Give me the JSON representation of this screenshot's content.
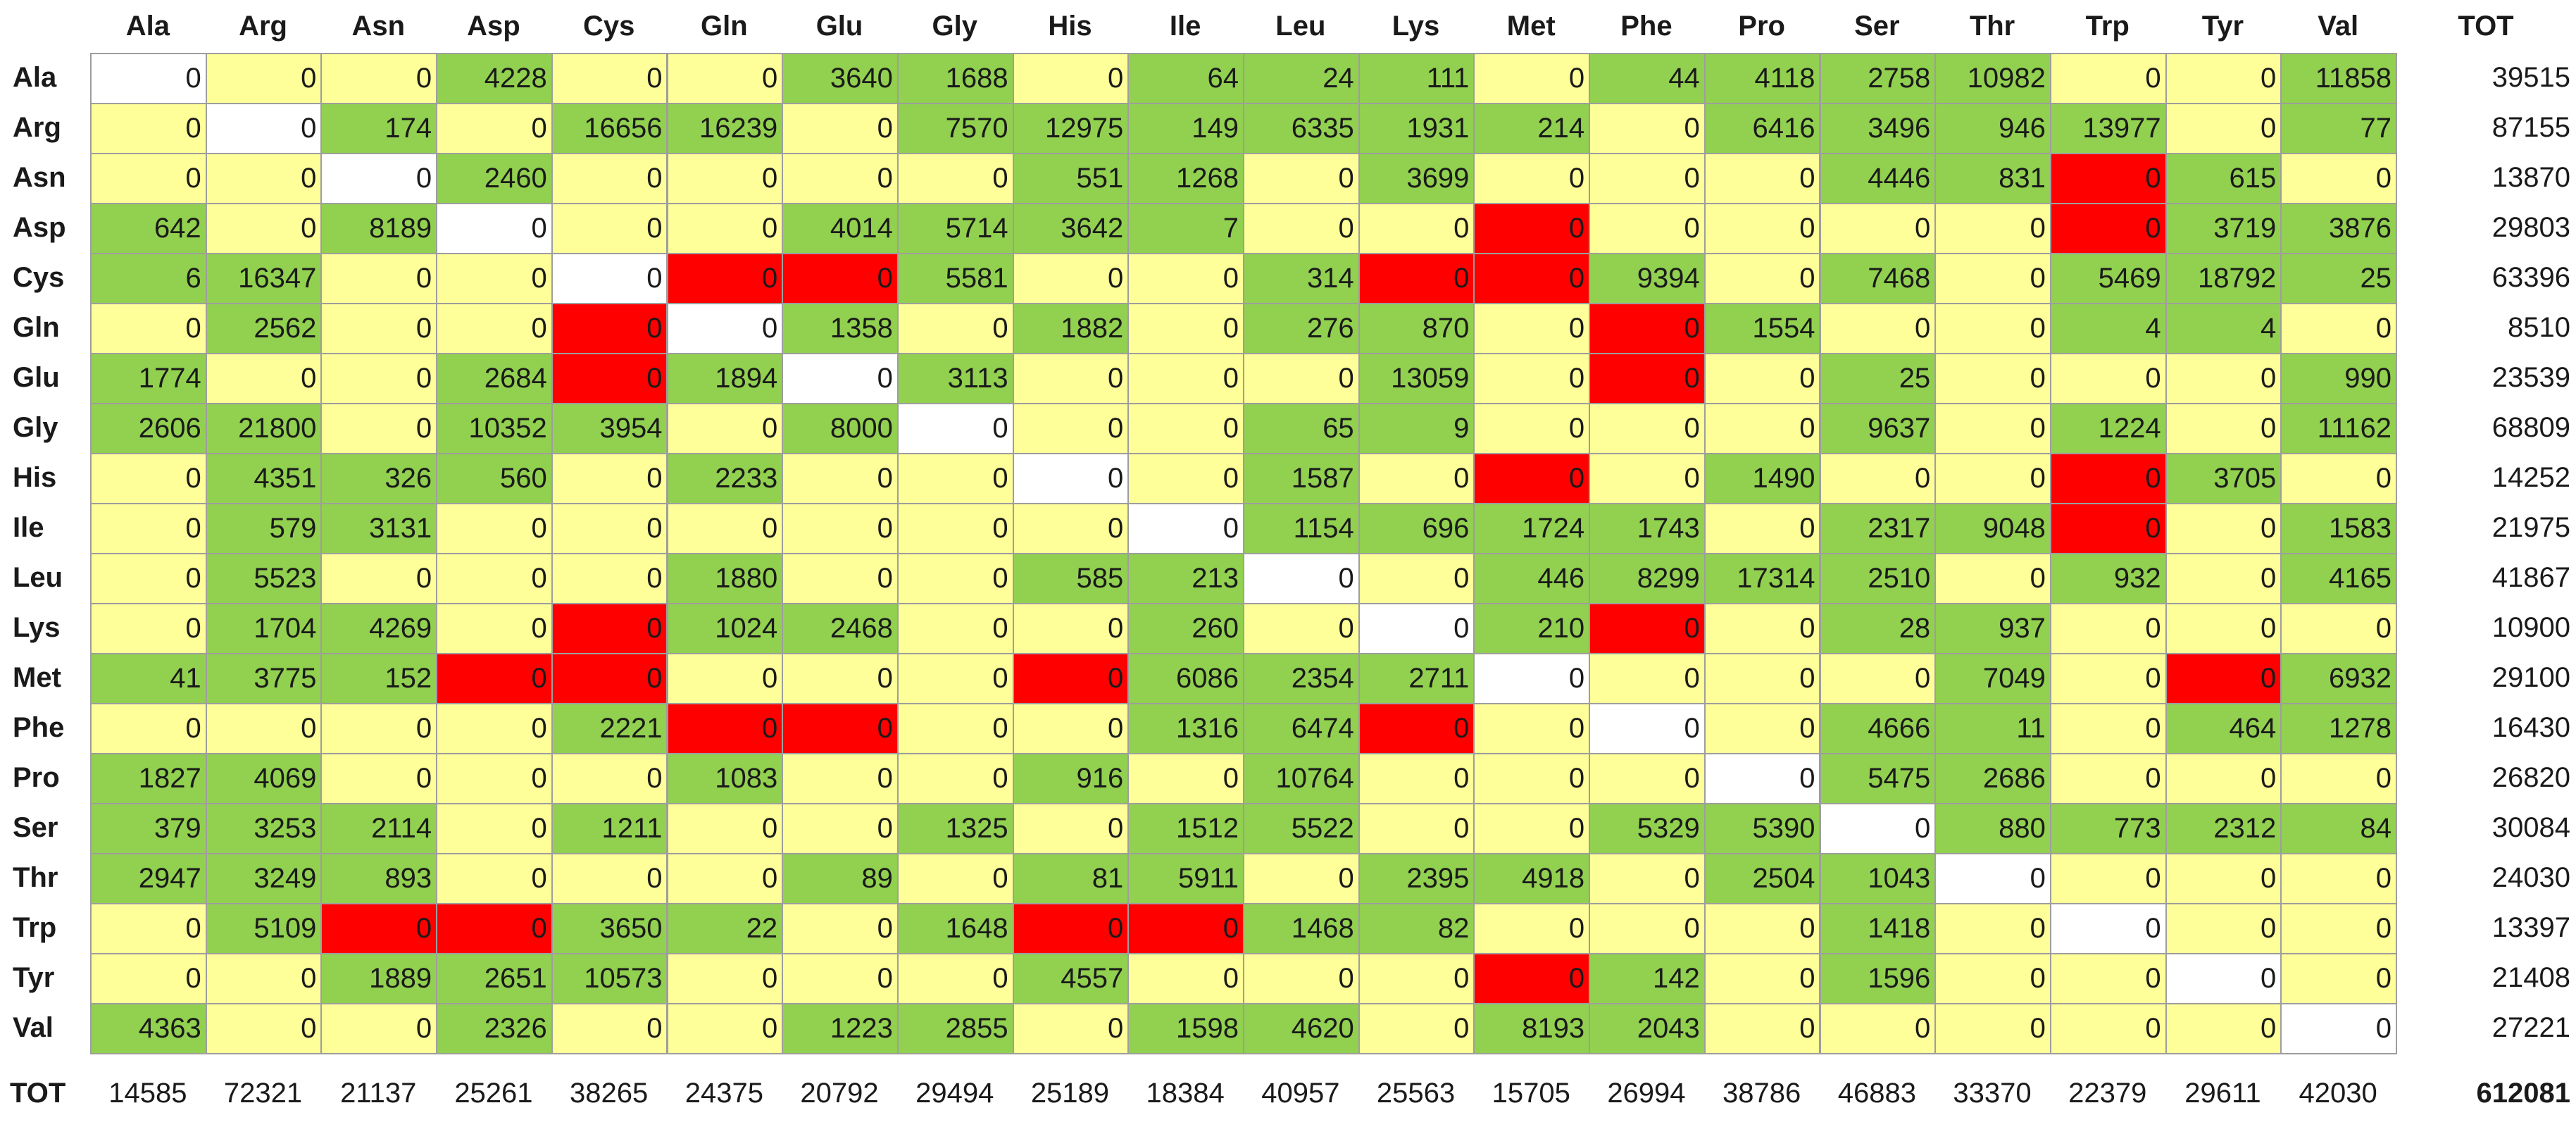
{
  "colors": {
    "zero": "#ffff99",
    "nonzero": "#92d050",
    "forbidden": "#ff0000",
    "diagonal": "#ffffff"
  },
  "chart_data": {
    "type": "table",
    "corner_label": "TOT",
    "columns": [
      "Ala",
      "Arg",
      "Asn",
      "Asp",
      "Cys",
      "Gln",
      "Glu",
      "Gly",
      "His",
      "Ile",
      "Leu",
      "Lys",
      "Met",
      "Phe",
      "Pro",
      "Ser",
      "Thr",
      "Trp",
      "Tyr",
      "Val"
    ],
    "total_label": "TOT",
    "rows": [
      {
        "label": "Ala",
        "values": [
          0,
          0,
          0,
          4228,
          0,
          0,
          3640,
          1688,
          0,
          64,
          24,
          111,
          0,
          44,
          4118,
          2758,
          10982,
          0,
          0,
          11858
        ],
        "total": 39515
      },
      {
        "label": "Arg",
        "values": [
          0,
          0,
          174,
          0,
          16656,
          16239,
          0,
          7570,
          12975,
          149,
          6335,
          1931,
          214,
          0,
          6416,
          3496,
          946,
          13977,
          0,
          77
        ],
        "total": 87155
      },
      {
        "label": "Asn",
        "values": [
          0,
          0,
          0,
          2460,
          0,
          0,
          0,
          0,
          551,
          1268,
          0,
          3699,
          0,
          0,
          0,
          4446,
          831,
          0,
          615,
          0
        ],
        "total": 13870
      },
      {
        "label": "Asp",
        "values": [
          642,
          0,
          8189,
          0,
          0,
          0,
          4014,
          5714,
          3642,
          7,
          0,
          0,
          0,
          0,
          0,
          0,
          0,
          0,
          3719,
          3876
        ],
        "total": 29803
      },
      {
        "label": "Cys",
        "values": [
          6,
          16347,
          0,
          0,
          0,
          0,
          0,
          5581,
          0,
          0,
          314,
          0,
          0,
          9394,
          0,
          7468,
          0,
          5469,
          18792,
          25
        ],
        "total": 63396
      },
      {
        "label": "Gln",
        "values": [
          0,
          2562,
          0,
          0,
          0,
          0,
          1358,
          0,
          1882,
          0,
          276,
          870,
          0,
          0,
          1554,
          0,
          0,
          4,
          4,
          0
        ],
        "total": 8510
      },
      {
        "label": "Glu",
        "values": [
          1774,
          0,
          0,
          2684,
          0,
          1894,
          0,
          3113,
          0,
          0,
          0,
          13059,
          0,
          0,
          0,
          25,
          0,
          0,
          0,
          990
        ],
        "total": 23539
      },
      {
        "label": "Gly",
        "values": [
          2606,
          21800,
          0,
          10352,
          3954,
          0,
          8000,
          0,
          0,
          0,
          65,
          9,
          0,
          0,
          0,
          9637,
          0,
          1224,
          0,
          11162
        ],
        "total": 68809
      },
      {
        "label": "His",
        "values": [
          0,
          4351,
          326,
          560,
          0,
          2233,
          0,
          0,
          0,
          0,
          1587,
          0,
          0,
          0,
          1490,
          0,
          0,
          0,
          3705,
          0
        ],
        "total": 14252
      },
      {
        "label": "Ile",
        "values": [
          0,
          579,
          3131,
          0,
          0,
          0,
          0,
          0,
          0,
          0,
          1154,
          696,
          1724,
          1743,
          0,
          2317,
          9048,
          0,
          0,
          1583
        ],
        "total": 21975
      },
      {
        "label": "Leu",
        "values": [
          0,
          5523,
          0,
          0,
          0,
          1880,
          0,
          0,
          585,
          213,
          0,
          0,
          446,
          8299,
          17314,
          2510,
          0,
          932,
          0,
          4165
        ],
        "total": 41867
      },
      {
        "label": "Lys",
        "values": [
          0,
          1704,
          4269,
          0,
          0,
          1024,
          2468,
          0,
          0,
          260,
          0,
          0,
          210,
          0,
          0,
          28,
          937,
          0,
          0,
          0
        ],
        "total": 10900
      },
      {
        "label": "Met",
        "values": [
          41,
          3775,
          152,
          0,
          0,
          0,
          0,
          0,
          0,
          6086,
          2354,
          2711,
          0,
          0,
          0,
          0,
          7049,
          0,
          0,
          6932
        ],
        "total": 29100
      },
      {
        "label": "Phe",
        "values": [
          0,
          0,
          0,
          0,
          2221,
          0,
          0,
          0,
          0,
          1316,
          6474,
          0,
          0,
          0,
          0,
          4666,
          11,
          0,
          464,
          1278
        ],
        "total": 16430
      },
      {
        "label": "Pro",
        "values": [
          1827,
          4069,
          0,
          0,
          0,
          1083,
          0,
          0,
          916,
          0,
          10764,
          0,
          0,
          0,
          0,
          5475,
          2686,
          0,
          0,
          0
        ],
        "total": 26820
      },
      {
        "label": "Ser",
        "values": [
          379,
          3253,
          2114,
          0,
          1211,
          0,
          0,
          1325,
          0,
          1512,
          5522,
          0,
          0,
          5329,
          5390,
          0,
          880,
          773,
          2312,
          84
        ],
        "total": 30084
      },
      {
        "label": "Thr",
        "values": [
          2947,
          3249,
          893,
          0,
          0,
          0,
          89,
          0,
          81,
          5911,
          0,
          2395,
          4918,
          0,
          2504,
          1043,
          0,
          0,
          0,
          0
        ],
        "total": 24030
      },
      {
        "label": "Trp",
        "values": [
          0,
          5109,
          0,
          0,
          3650,
          22,
          0,
          1648,
          0,
          0,
          1468,
          82,
          0,
          0,
          0,
          1418,
          0,
          0,
          0,
          0
        ],
        "total": 13397
      },
      {
        "label": "Tyr",
        "values": [
          0,
          0,
          1889,
          2651,
          10573,
          0,
          0,
          0,
          4557,
          0,
          0,
          0,
          0,
          142,
          0,
          1596,
          0,
          0,
          0,
          0
        ],
        "total": 21408
      },
      {
        "label": "Val",
        "values": [
          4363,
          0,
          0,
          2326,
          0,
          0,
          1223,
          2855,
          0,
          1598,
          4620,
          0,
          8193,
          2043,
          0,
          0,
          0,
          0,
          0,
          0
        ],
        "total": 27221
      }
    ],
    "forbidden": [
      [
        2,
        17
      ],
      [
        3,
        12
      ],
      [
        3,
        17
      ],
      [
        4,
        5
      ],
      [
        4,
        6
      ],
      [
        4,
        11
      ],
      [
        4,
        12
      ],
      [
        5,
        4
      ],
      [
        5,
        13
      ],
      [
        6,
        4
      ],
      [
        6,
        13
      ],
      [
        8,
        12
      ],
      [
        8,
        17
      ],
      [
        9,
        17
      ],
      [
        11,
        4
      ],
      [
        11,
        13
      ],
      [
        12,
        3
      ],
      [
        12,
        4
      ],
      [
        12,
        8
      ],
      [
        12,
        18
      ],
      [
        13,
        5
      ],
      [
        13,
        6
      ],
      [
        13,
        11
      ],
      [
        17,
        2
      ],
      [
        17,
        3
      ],
      [
        17,
        8
      ],
      [
        17,
        9
      ],
      [
        18,
        12
      ]
    ],
    "column_totals": [
      14585,
      72321,
      21137,
      25261,
      38265,
      24375,
      20792,
      29494,
      25189,
      18384,
      40957,
      25563,
      15705,
      26994,
      38786,
      46883,
      33370,
      22379,
      29611,
      42030
    ],
    "grand_total": 612081
  }
}
